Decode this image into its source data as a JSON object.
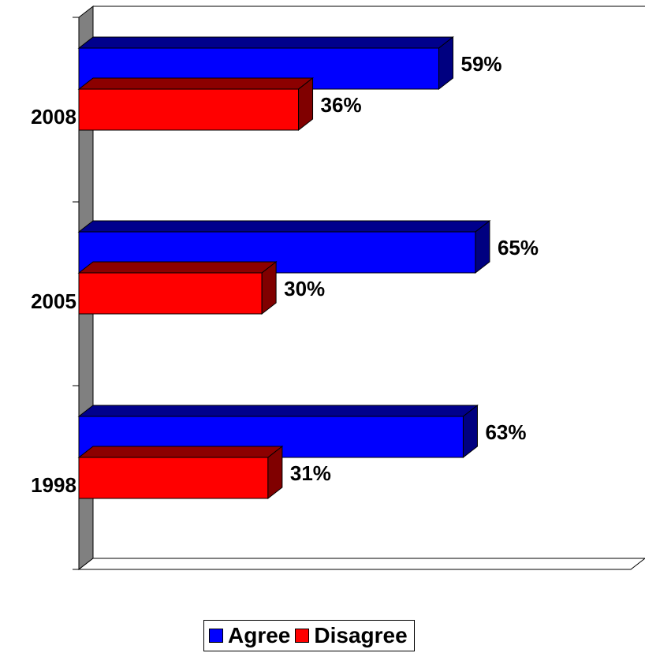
{
  "chart_data": {
    "type": "bar",
    "orientation": "horizontal",
    "three_d": true,
    "categories": [
      "2008",
      "2005",
      "1998"
    ],
    "series": [
      {
        "name": "Agree",
        "color": "#0000FF",
        "values": [
          59,
          65,
          63
        ],
        "labels": [
          "59%",
          "65%",
          "63%"
        ]
      },
      {
        "name": "Disagree",
        "color": "#FF0000",
        "values": [
          36,
          30,
          31
        ],
        "labels": [
          "36%",
          "30%",
          "31%"
        ]
      }
    ],
    "xlim": [
      0,
      80
    ],
    "unit": "%",
    "grid": false,
    "legend_position": "bottom"
  }
}
